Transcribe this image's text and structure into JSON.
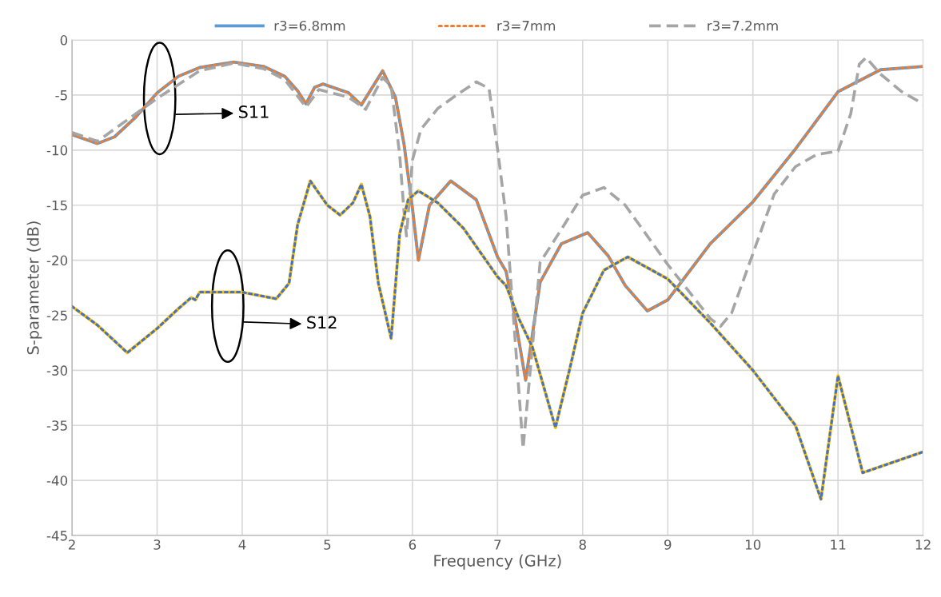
{
  "chart_data": {
    "type": "line",
    "xlabel": "Frequency (GHz)",
    "ylabel": "S-parameter (dB)",
    "xlim": [
      2,
      12
    ],
    "xticks": [
      2,
      3,
      4,
      5,
      6,
      7,
      8,
      9,
      10,
      11,
      12
    ],
    "ylim": [
      -45,
      0
    ],
    "yticks": [
      -45,
      -40,
      -35,
      -30,
      -25,
      -20,
      -15,
      -10,
      -5,
      0
    ],
    "grid": true,
    "legend": "top",
    "marker": "none",
    "annotations": [
      "S11",
      "S12"
    ],
    "series": [
      {
        "name": "r3=6.8mm",
        "color": "#5b9bd5",
        "line_style": "solid",
        "x": [
          2.0,
          2.3,
          2.5,
          2.75,
          3.0,
          3.25,
          3.5,
          3.9,
          4.25,
          4.5,
          4.65,
          4.75,
          4.85,
          4.95,
          5.25,
          5.4,
          5.65,
          5.8,
          5.9,
          6.0,
          6.07,
          6.2,
          6.45,
          6.75,
          7.0,
          7.1,
          7.2,
          7.33,
          7.5,
          7.75,
          8.06,
          8.3,
          8.5,
          8.76,
          9.0,
          9.5,
          10.0,
          10.5,
          11.0,
          11.5,
          12.0
        ],
        "values": [
          -8.6,
          -9.4,
          -8.8,
          -7.0,
          -4.8,
          -3.3,
          -2.5,
          -2.0,
          -2.4,
          -3.3,
          -4.6,
          -5.8,
          -4.3,
          -4.0,
          -4.8,
          -5.9,
          -2.8,
          -5.2,
          -9.4,
          -15.3,
          -20.0,
          -15.0,
          -12.8,
          -14.5,
          -19.7,
          -21.0,
          -25.0,
          -30.9,
          -22.0,
          -18.5,
          -17.5,
          -19.6,
          -22.3,
          -24.6,
          -23.6,
          -18.5,
          -14.7,
          -9.9,
          -4.7,
          -2.7,
          -2.4
        ]
      },
      {
        "name": "r3=7mm",
        "color": "#ed7d31",
        "line_style": "dotted",
        "x": [
          2.0,
          2.3,
          2.5,
          2.75,
          3.0,
          3.25,
          3.5,
          3.9,
          4.25,
          4.5,
          4.65,
          4.75,
          4.85,
          4.95,
          5.25,
          5.4,
          5.65,
          5.8,
          5.9,
          6.0,
          6.07,
          6.2,
          6.45,
          6.75,
          7.0,
          7.1,
          7.2,
          7.33,
          7.5,
          7.75,
          8.06,
          8.3,
          8.5,
          8.76,
          9.0,
          9.5,
          10.0,
          10.5,
          11.0,
          11.5,
          12.0
        ],
        "values": [
          -8.6,
          -9.4,
          -8.8,
          -7.0,
          -4.8,
          -3.3,
          -2.5,
          -2.0,
          -2.4,
          -3.3,
          -4.6,
          -5.8,
          -4.3,
          -4.0,
          -4.8,
          -5.9,
          -2.8,
          -5.2,
          -9.4,
          -15.3,
          -20.0,
          -15.0,
          -12.8,
          -14.5,
          -19.7,
          -21.0,
          -25.0,
          -30.9,
          -22.0,
          -18.5,
          -17.5,
          -19.6,
          -22.3,
          -24.6,
          -23.6,
          -18.5,
          -14.7,
          -9.9,
          -4.7,
          -2.7,
          -2.4
        ]
      },
      {
        "name": "r3=7.2mm",
        "color": "#a5a5a5",
        "line_style": "dashed",
        "x": [
          2.0,
          2.3,
          3.0,
          3.5,
          3.9,
          4.25,
          4.5,
          4.75,
          4.9,
          5.25,
          5.45,
          5.65,
          5.75,
          5.85,
          5.9,
          5.93,
          6.0,
          6.1,
          6.3,
          6.5,
          6.75,
          6.9,
          7.0,
          7.1,
          7.3,
          7.5,
          7.75,
          8.0,
          8.25,
          8.5,
          9.0,
          9.5,
          9.62,
          9.75,
          10.0,
          10.25,
          10.5,
          10.75,
          11.0,
          11.15,
          11.25,
          11.33,
          11.5,
          11.75,
          12.0
        ],
        "values": [
          -8.4,
          -9.2,
          -5.3,
          -2.8,
          -2.1,
          -2.6,
          -3.6,
          -6.1,
          -4.5,
          -5.2,
          -6.3,
          -3.4,
          -4.2,
          -10.4,
          -15.5,
          -17.8,
          -10.9,
          -8.1,
          -6.2,
          -5.1,
          -3.8,
          -4.4,
          -9.9,
          -16.0,
          -37.1,
          -20.2,
          -17.2,
          -14.1,
          -13.4,
          -15.0,
          -20.4,
          -25.3,
          -26.0,
          -24.8,
          -19.4,
          -14.0,
          -11.5,
          -10.4,
          -10.1,
          -6.7,
          -2.2,
          -1.6,
          -3.1,
          -4.7,
          -5.8
        ]
      },
      {
        "color": "#ffc000",
        "line_style": "solid",
        "x": [
          2.0,
          2.3,
          2.65,
          3.0,
          3.25,
          3.4,
          3.45,
          3.5,
          4.0,
          4.4,
          4.55,
          4.65,
          4.8,
          5.0,
          5.15,
          5.3,
          5.4,
          5.5,
          5.6,
          5.75,
          5.85,
          5.95,
          6.07,
          6.3,
          6.6,
          7.0,
          7.1,
          7.25,
          7.41,
          7.68,
          7.85,
          8.0,
          8.25,
          8.53,
          9.0,
          9.5,
          10.0,
          10.5,
          10.8,
          11.0,
          11.29,
          12.0
        ],
        "values": [
          -24.2,
          -25.9,
          -28.4,
          -26.2,
          -24.4,
          -23.4,
          -23.6,
          -22.9,
          -22.9,
          -23.5,
          -22.1,
          -16.8,
          -12.8,
          -15.0,
          -15.9,
          -14.8,
          -13.1,
          -16.0,
          -22.1,
          -27.1,
          -17.6,
          -14.5,
          -13.7,
          -14.8,
          -17.1,
          -21.5,
          -22.3,
          -25.3,
          -27.9,
          -35.2,
          -29.8,
          -24.8,
          -20.9,
          -19.7,
          -21.7,
          -25.7,
          -30.0,
          -35.0,
          -41.7,
          -30.5,
          -39.3,
          -37.4
        ]
      },
      {
        "color": "#4472c4",
        "line_style": "dotted",
        "x": [
          2.0,
          2.3,
          2.65,
          3.0,
          3.25,
          3.4,
          3.45,
          3.5,
          4.0,
          4.4,
          4.55,
          4.65,
          4.8,
          5.0,
          5.15,
          5.3,
          5.4,
          5.5,
          5.6,
          5.75,
          5.85,
          5.95,
          6.07,
          6.3,
          6.6,
          7.0,
          7.1,
          7.25,
          7.41,
          7.68,
          7.85,
          8.0,
          8.25,
          8.53,
          9.0,
          9.5,
          10.0,
          10.5,
          10.8,
          11.0,
          11.29,
          12.0
        ],
        "values": [
          -24.2,
          -25.9,
          -28.4,
          -26.2,
          -24.4,
          -23.4,
          -23.6,
          -22.9,
          -22.9,
          -23.5,
          -22.1,
          -16.8,
          -12.8,
          -15.0,
          -15.9,
          -14.8,
          -13.1,
          -16.0,
          -22.1,
          -27.1,
          -17.6,
          -14.5,
          -13.7,
          -14.8,
          -17.1,
          -21.5,
          -22.3,
          -25.3,
          -27.9,
          -35.2,
          -29.8,
          -24.8,
          -20.9,
          -19.7,
          -21.7,
          -25.7,
          -30.0,
          -35.0,
          -41.7,
          -30.5,
          -39.3,
          -37.4
        ]
      }
    ]
  }
}
